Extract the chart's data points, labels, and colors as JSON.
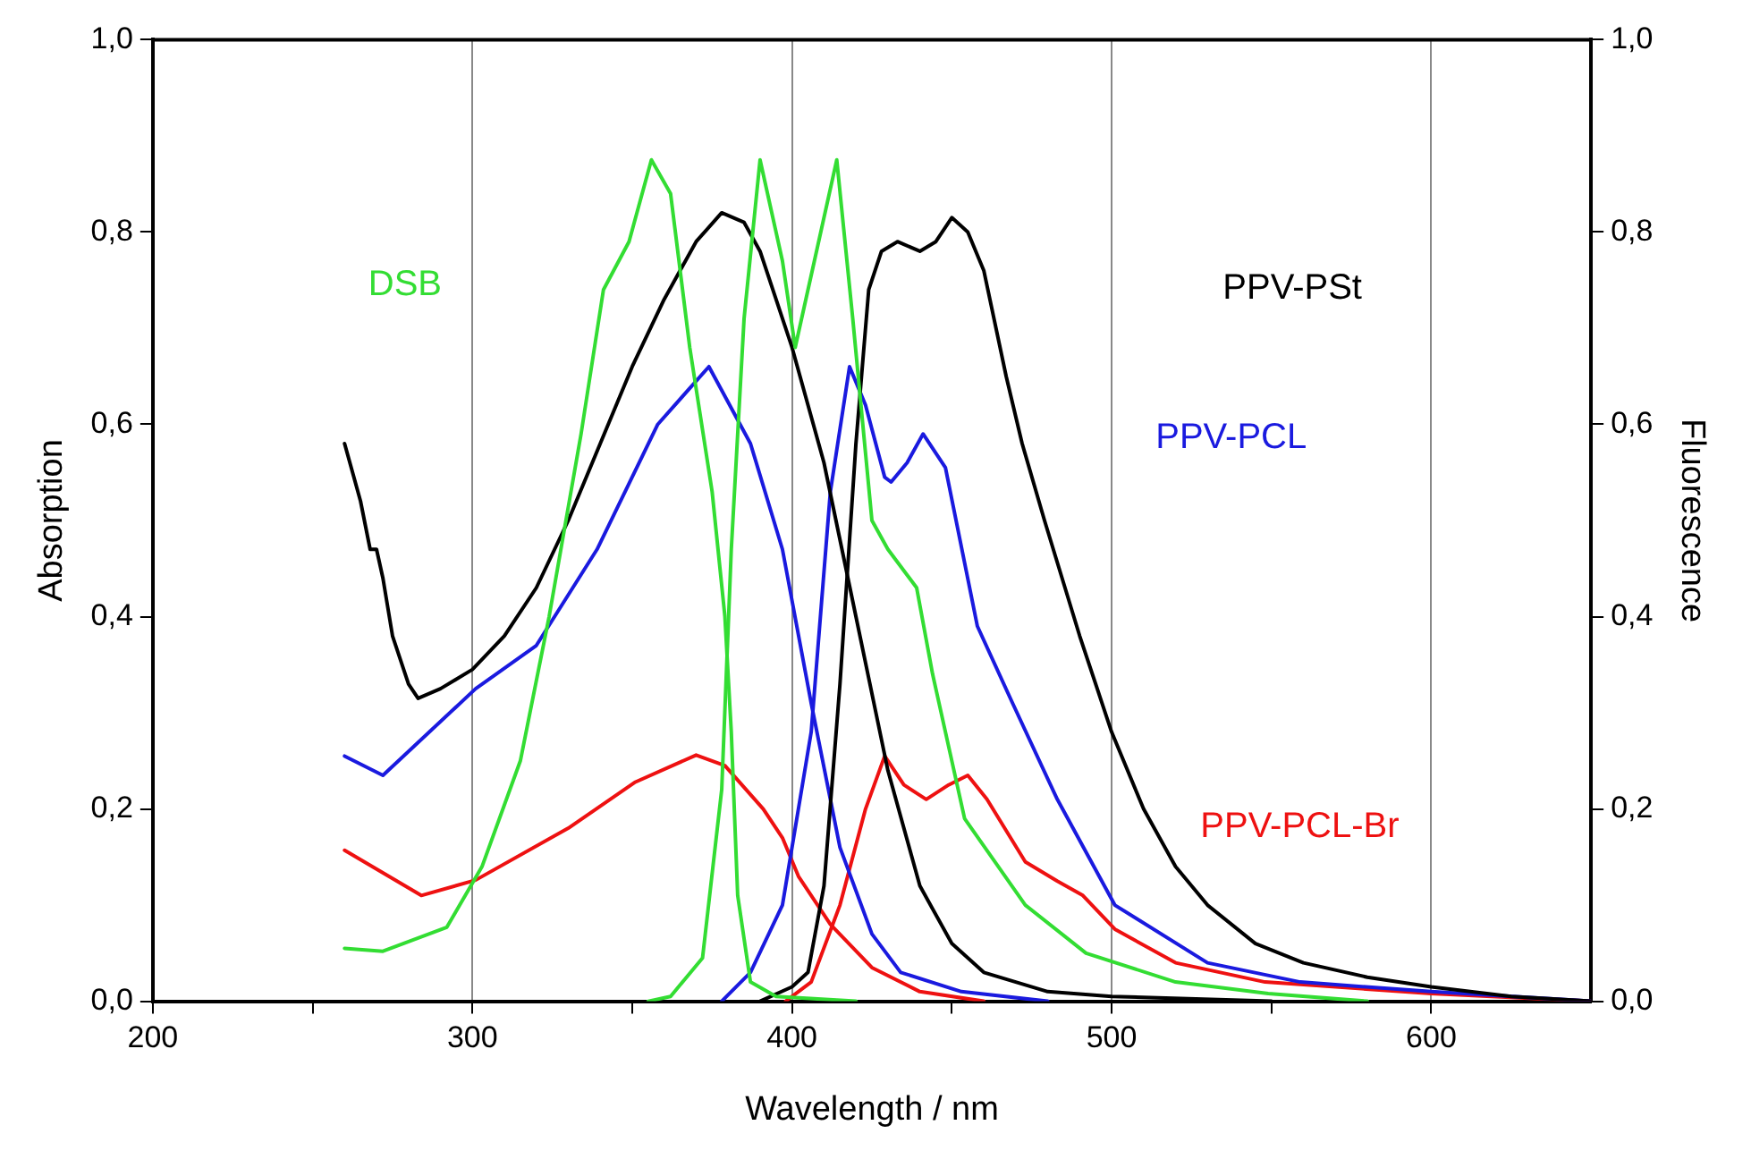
{
  "chart_data": {
    "type": "line",
    "xlabel": "Wavelength / nm",
    "ylabel": "Absorption",
    "y2label": "Fluorescence",
    "xlim": [
      200,
      650
    ],
    "xticks": [
      200,
      {
        "value": 250,
        "label": null
      },
      300,
      {
        "value": 350,
        "label": null
      },
      400,
      {
        "value": 450,
        "label": null
      },
      500,
      {
        "value": 550,
        "label": null
      },
      600
    ],
    "ylim": [
      0,
      1
    ],
    "yticks": [
      {
        "value": 0,
        "label": "0,0"
      },
      {
        "value": 0.2,
        "label": "0,2"
      },
      {
        "value": 0.4,
        "label": "0,4"
      },
      {
        "value": 0.6,
        "label": "0,6"
      },
      {
        "value": 0.8,
        "label": "0,8"
      },
      {
        "value": 1,
        "label": "1,0"
      }
    ],
    "y2lim": [
      0,
      1
    ],
    "y2ticks": [
      {
        "value": 0,
        "label": "0,0"
      },
      {
        "value": 0.2,
        "label": "0,2"
      },
      {
        "value": 0.4,
        "label": "0,4"
      },
      {
        "value": 0.6,
        "label": "0,6"
      },
      {
        "value": 0.8,
        "label": "0,8"
      },
      {
        "value": 1,
        "label": "1,0"
      }
    ],
    "grid": "x",
    "legend": false,
    "marker": "none",
    "line_style": "solid",
    "series": [
      {
        "name": "DSB",
        "color": "#33dd33",
        "axis": "y",
        "x": [
          260,
          272,
          292,
          303,
          315,
          324,
          334,
          341,
          349,
          356,
          362,
          368,
          375,
          379,
          381,
          383,
          387,
          395,
          420
        ],
        "values": [
          0.055,
          0.052,
          0.077,
          0.14,
          0.25,
          0.4,
          0.59,
          0.74,
          0.79,
          0.875,
          0.84,
          0.68,
          0.53,
          0.4,
          0.28,
          0.11,
          0.02,
          0.005,
          0
        ]
      },
      {
        "color": "#33dd33",
        "axis": "y2",
        "x": [
          355,
          362,
          372,
          378,
          381,
          385,
          390,
          397,
          401,
          407,
          414,
          419,
          425,
          430,
          439,
          444,
          454,
          473,
          492,
          520,
          549,
          580
        ],
        "values": [
          0,
          0.005,
          0.045,
          0.22,
          0.47,
          0.71,
          0.875,
          0.77,
          0.68,
          0.77,
          0.875,
          0.71,
          0.5,
          0.47,
          0.43,
          0.34,
          0.19,
          0.1,
          0.05,
          0.02,
          0.008,
          0
        ]
      },
      {
        "color": "#000000",
        "axis": "y",
        "x": [
          260,
          265,
          268,
          270,
          272,
          275,
          280,
          283,
          290,
          300,
          310,
          320,
          330,
          340,
          350,
          360,
          370,
          378,
          385,
          390,
          400,
          410,
          420,
          430,
          440,
          450,
          460,
          480,
          500,
          550
        ],
        "values": [
          0.58,
          0.52,
          0.47,
          0.47,
          0.44,
          0.38,
          0.33,
          0.315,
          0.325,
          0.345,
          0.38,
          0.43,
          0.5,
          0.58,
          0.66,
          0.73,
          0.79,
          0.82,
          0.81,
          0.78,
          0.68,
          0.56,
          0.4,
          0.24,
          0.12,
          0.06,
          0.03,
          0.01,
          0.005,
          0
        ]
      },
      {
        "name": "PPV-PSt",
        "color": "#000000",
        "axis": "y2",
        "x": [
          390,
          400,
          405,
          410,
          415,
          420,
          424,
          428,
          433,
          440,
          445,
          450,
          455,
          460,
          467,
          472,
          479,
          490,
          500,
          510,
          520,
          530,
          545,
          560,
          580,
          600,
          625,
          650
        ],
        "values": [
          0,
          0.015,
          0.03,
          0.12,
          0.33,
          0.58,
          0.74,
          0.78,
          0.79,
          0.78,
          0.79,
          0.815,
          0.8,
          0.76,
          0.65,
          0.58,
          0.5,
          0.38,
          0.28,
          0.2,
          0.14,
          0.1,
          0.06,
          0.04,
          0.025,
          0.015,
          0.005,
          0
        ]
      },
      {
        "color": "#1a1adf",
        "axis": "y",
        "x": [
          260,
          272,
          301,
          320,
          339,
          358,
          374,
          387,
          397,
          406,
          415,
          425,
          434,
          453,
          480
        ],
        "values": [
          0.255,
          0.235,
          0.325,
          0.37,
          0.47,
          0.6,
          0.66,
          0.58,
          0.47,
          0.31,
          0.16,
          0.07,
          0.03,
          0.01,
          0
        ]
      },
      {
        "name": "PPV-PCL",
        "color": "#1a1adf",
        "axis": "y2",
        "x": [
          378,
          387,
          397,
          406,
          412,
          418,
          423,
          429,
          431,
          436,
          441,
          448,
          458,
          469,
          483,
          501,
          530,
          559,
          600,
          650
        ],
        "values": [
          0,
          0.03,
          0.1,
          0.28,
          0.53,
          0.66,
          0.62,
          0.545,
          0.54,
          0.56,
          0.59,
          0.555,
          0.39,
          0.31,
          0.21,
          0.1,
          0.04,
          0.02,
          0.01,
          0
        ]
      },
      {
        "color": "#ee1111",
        "axis": "y",
        "x": [
          260,
          284,
          301,
          330,
          351,
          370,
          379,
          391,
          397,
          402,
          412,
          425,
          440,
          460
        ],
        "values": [
          0.157,
          0.11,
          0.126,
          0.18,
          0.228,
          0.256,
          0.245,
          0.2,
          0.17,
          0.13,
          0.08,
          0.035,
          0.01,
          0
        ]
      },
      {
        "name": "PPV-PCL-Br",
        "color": "#ee1111",
        "axis": "y2",
        "x": [
          398,
          406,
          415,
          423,
          429,
          435,
          442,
          449,
          455,
          461,
          473,
          483,
          491,
          501,
          520,
          548,
          600,
          650
        ],
        "values": [
          0,
          0.02,
          0.1,
          0.2,
          0.255,
          0.225,
          0.21,
          0.225,
          0.235,
          0.21,
          0.145,
          0.125,
          0.11,
          0.075,
          0.04,
          0.02,
          0.008,
          0
        ]
      }
    ]
  }
}
